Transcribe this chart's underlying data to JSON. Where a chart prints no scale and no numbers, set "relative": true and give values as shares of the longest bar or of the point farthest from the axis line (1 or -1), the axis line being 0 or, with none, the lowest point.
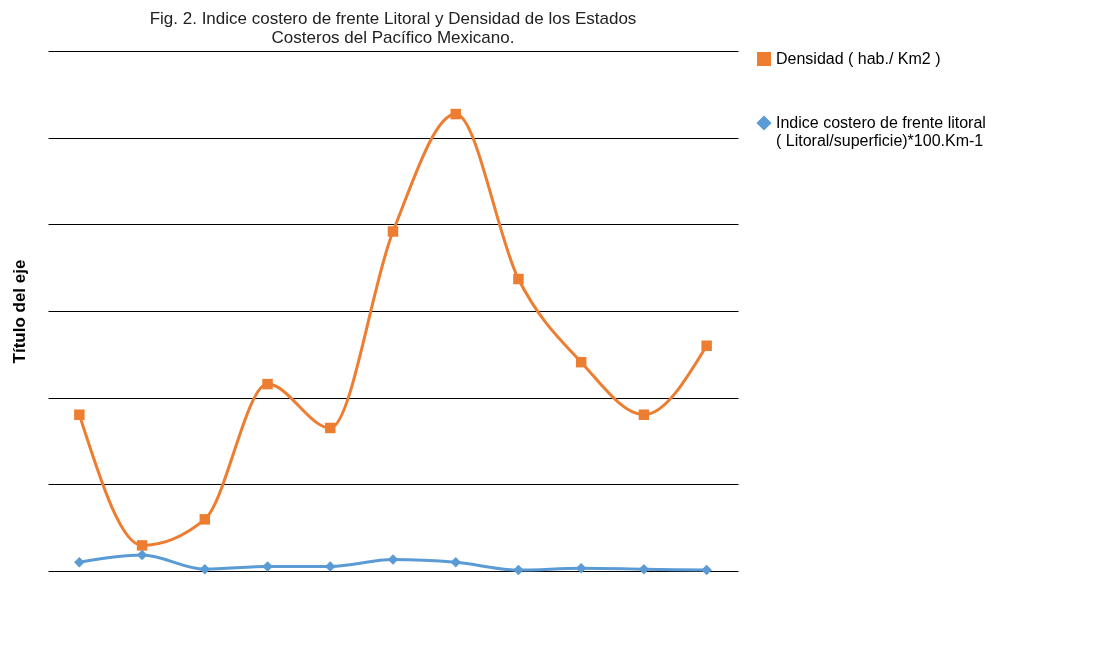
{
  "chart_data": {
    "type": "line",
    "title": "Fig. 2. Indice costero de frente Litoral y Densidad de los Estados\nCosteros del Pacífico Mexicano.",
    "ylabel": "Título del eje",
    "relative": true,
    "grid": "y",
    "legend": "right",
    "categories": [
      null,
      null,
      null,
      null,
      null,
      null,
      null,
      null,
      null,
      null,
      null
    ],
    "series": [
      {
        "name": "Densidad ( hab./ Km2 )",
        "color": "#ed7d31",
        "marker": "square",
        "values": [
          0.342,
          0.056,
          0.113,
          0.409,
          0.313,
          0.743,
          1,
          0.639,
          0.457,
          0.342,
          0.493
        ]
      },
      {
        "name": "Indice costero de frente litoral\n( Litoral/superficie)*100.Km-1",
        "color": "#5b9bd5",
        "marker": "diamond",
        "values": [
          0.019,
          0.035,
          0.004,
          0.01,
          0.01,
          0.025,
          0.019,
          0.002,
          0.006,
          0.004,
          0.002
        ]
      }
    ]
  }
}
